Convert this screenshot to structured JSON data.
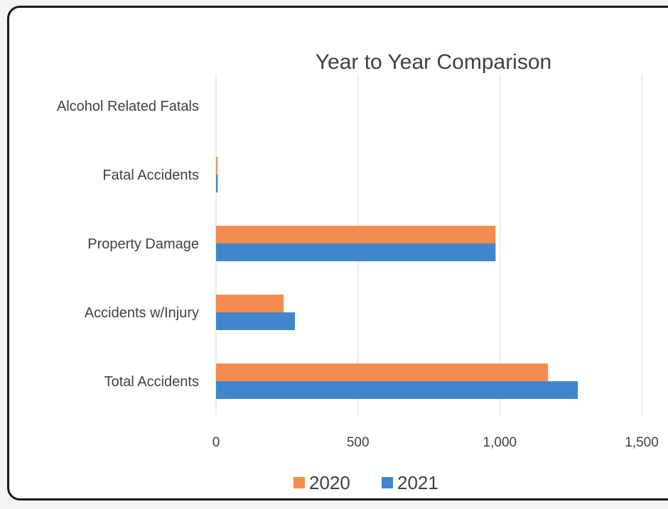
{
  "chart_data": {
    "type": "bar",
    "orientation": "horizontal",
    "title": "Year to Year Comparison",
    "categories": [
      "Alcohol Related Fatals",
      "Fatal Accidents",
      "Property Damage",
      "Accidents w/Injury",
      "Total Accidents"
    ],
    "series": [
      {
        "name": "2020",
        "color": "#F28D4F",
        "values": [
          0,
          5,
          985,
          238,
          1170
        ]
      },
      {
        "name": "2021",
        "color": "#3F86CC",
        "values": [
          0,
          6,
          985,
          278,
          1275
        ]
      }
    ],
    "x_ticks": [
      0,
      500,
      1000,
      1500
    ],
    "x_tick_labels": [
      "0",
      "500",
      "1,000",
      "1,500"
    ],
    "xlim": [
      0,
      1500
    ],
    "grid": "vertical",
    "legend": "bottom"
  }
}
